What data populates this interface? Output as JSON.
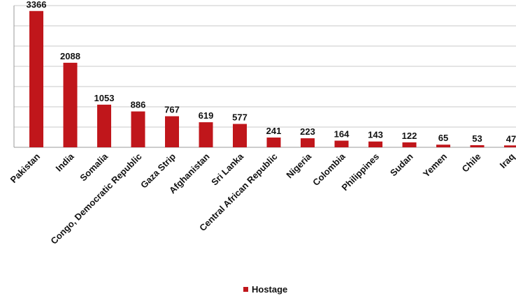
{
  "chart_data": {
    "type": "bar",
    "categories": [
      "Pakistan",
      "India",
      "Somalia",
      "Congo, Democratic Republic",
      "Gaza Strip",
      "Afghanistan",
      "Sri Lanka",
      "Central African Republic",
      "Nigeria",
      "Colombia",
      "Philippines",
      "Sudan",
      "Yemen",
      "Chile",
      "Iraq"
    ],
    "series": [
      {
        "name": "Hostage",
        "values": [
          3366,
          2088,
          1053,
          886,
          767,
          619,
          577,
          241,
          223,
          164,
          143,
          122,
          65,
          53,
          47
        ]
      }
    ],
    "ylim": [
      0,
      3500
    ],
    "grid": true,
    "legend_position": "bottom",
    "data_labels": true,
    "colors": {
      "bar": "#c0161b"
    }
  }
}
